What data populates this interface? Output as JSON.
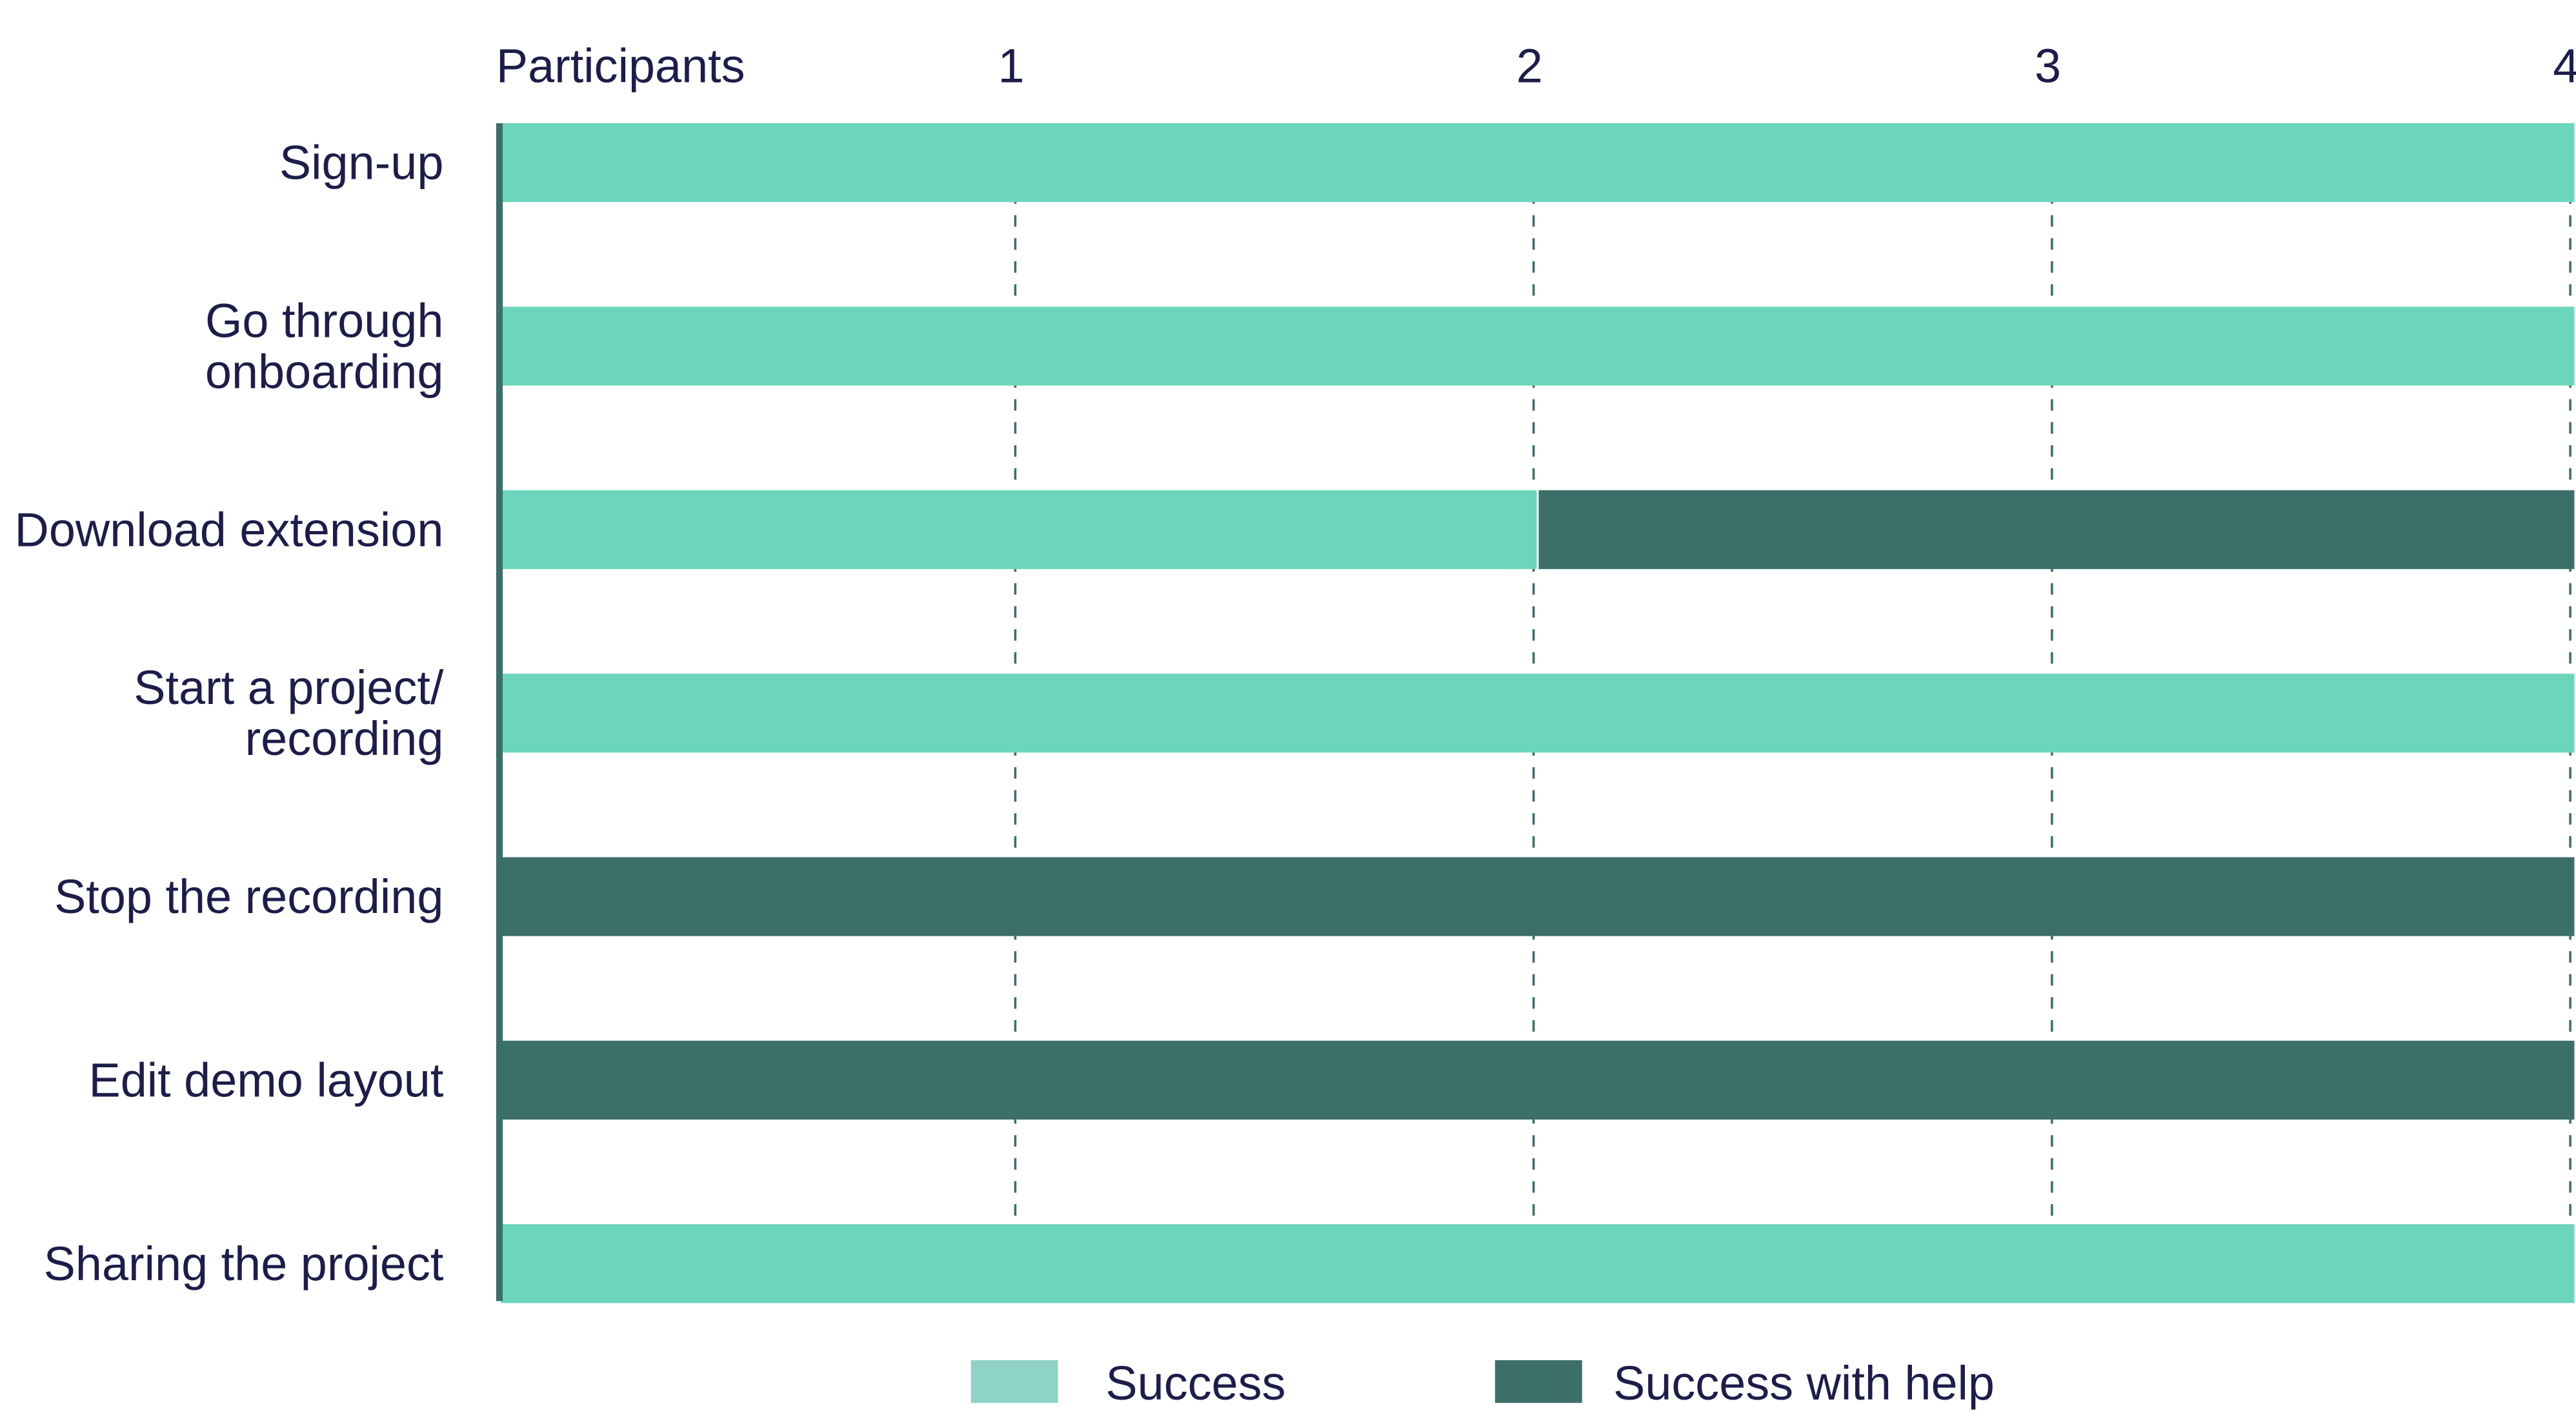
{
  "chart_data": {
    "type": "bar",
    "orientation": "horizontal",
    "stacked": true,
    "xlabel": "Participants",
    "xlim": [
      0,
      4
    ],
    "xticks": [
      1,
      2,
      3,
      4
    ],
    "grid": "vertical-dashed",
    "legend_position": "bottom",
    "categories": [
      [
        "Sign-up"
      ],
      [
        "Go through",
        "onboarding"
      ],
      [
        "Download extension"
      ],
      [
        "Start a project/",
        "recording"
      ],
      [
        "Stop the recording"
      ],
      [
        "Edit demo layout"
      ],
      [
        "Sharing the project"
      ]
    ],
    "series": [
      {
        "name": "Success",
        "color": "#6bd6bc",
        "legend_color": "#8ed3c5",
        "values": [
          4,
          4,
          2,
          4,
          0,
          0,
          4
        ]
      },
      {
        "name": "Success with help",
        "color": "#3c6e6a",
        "legend_color": "#3c6e6a",
        "values": [
          0,
          0,
          2,
          0,
          4,
          4,
          0
        ]
      }
    ],
    "axis_line_color": "#3c6e6a",
    "text_color": "#1d1d4b"
  }
}
